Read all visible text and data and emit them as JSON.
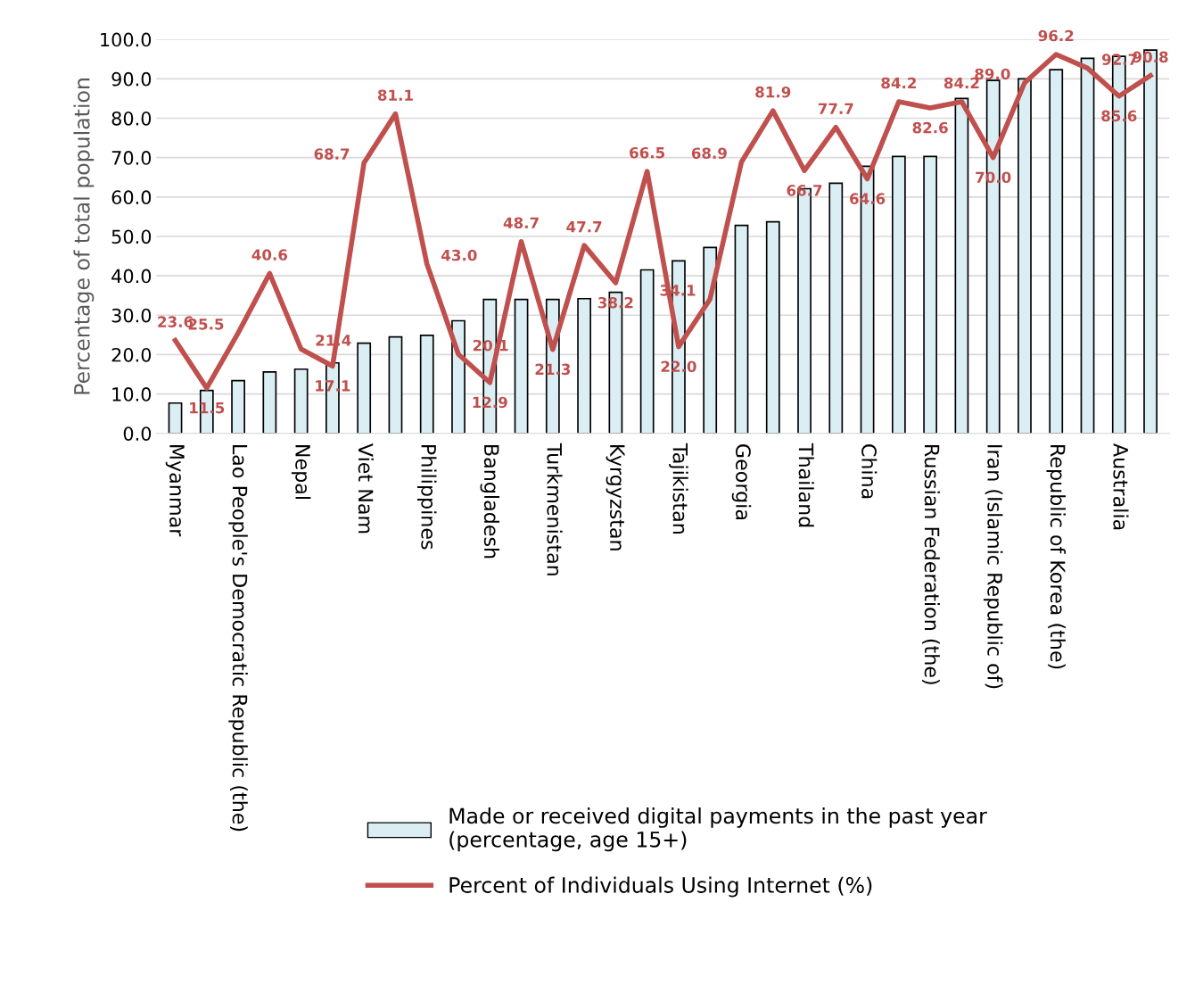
{
  "chart_data": {
    "type": "bar",
    "ylabel": "Percentage of total population",
    "categories": [
      "Myanmar",
      null,
      "Lao People's Democratic Republic (the)",
      null,
      "Nepal",
      null,
      "Viet Nam",
      null,
      "Philippines",
      null,
      "Bangladesh",
      null,
      "Turkmenistan",
      null,
      "Kyrgyzstan",
      null,
      "Tajikistan",
      null,
      "Georgia",
      null,
      "Thailand",
      null,
      "China",
      null,
      "Russian Federation (the)",
      null,
      "Iran (Islamic Republic of)",
      null,
      "Republic of Korea (the)",
      null,
      "Australia",
      null
    ],
    "series": [
      {
        "name": "Made or received digital payments in the past year (percentage, age 15+)",
        "color": "#daeef3",
        "values": [
          7.7,
          10.9,
          13.4,
          15.6,
          16.3,
          17.9,
          22.9,
          24.5,
          24.9,
          28.6,
          34.0,
          34.0,
          34.0,
          34.2,
          35.8,
          41.5,
          43.8,
          47.2,
          52.8,
          53.7,
          62.1,
          63.5,
          67.8,
          70.3,
          70.3,
          85.0,
          89.6,
          90.0,
          92.3,
          95.2,
          95.7,
          97.3
        ]
      },
      {
        "name": "Percent of Individuals Using Internet (%)",
        "type": "line",
        "color": "#c0504d",
        "values": [
          23.6,
          11.5,
          25.5,
          40.6,
          21.4,
          17.1,
          68.7,
          81.1,
          43.0,
          20.1,
          12.9,
          48.7,
          21.3,
          47.7,
          38.2,
          66.5,
          22.0,
          34.1,
          68.9,
          81.9,
          66.7,
          77.7,
          64.6,
          84.2,
          82.6,
          84.2,
          70.0,
          89.0,
          96.2,
          92.7,
          85.6,
          90.8
        ],
        "value_labels": [
          "23.6",
          "11.5",
          "25.5",
          "40.6",
          "21.4",
          "17.1",
          "68.7",
          "81.1",
          "43.0",
          "20.1",
          "12.9",
          "48.7",
          "21.3",
          "47.7",
          "38.2",
          "66.5",
          "22.0",
          "34.1",
          "68.9",
          "81.9",
          "66.7",
          "77.7",
          "64.6",
          "84.2",
          "82.6",
          "84.2",
          "70.0",
          "89.0",
          "96.2",
          "92.7",
          "85.6",
          "90.8"
        ]
      }
    ],
    "ylim": [
      0,
      100
    ],
    "yticks": [
      {
        "value": 0,
        "label": "0.0"
      },
      {
        "value": 10,
        "label": "10.0"
      },
      {
        "value": 20,
        "label": "20.0"
      },
      {
        "value": 30,
        "label": "30.0"
      },
      {
        "value": 40,
        "label": "40.0"
      },
      {
        "value": 50,
        "label": "50.0"
      },
      {
        "value": 60,
        "label": "60.0"
      },
      {
        "value": 70,
        "label": "70.0"
      },
      {
        "value": 80,
        "label": "80.0"
      },
      {
        "value": 90,
        "label": "90.0"
      },
      {
        "value": 100,
        "label": "100.0"
      }
    ],
    "grid": "y",
    "legend": "bottom",
    "marker": "none",
    "line_style": "solid"
  }
}
